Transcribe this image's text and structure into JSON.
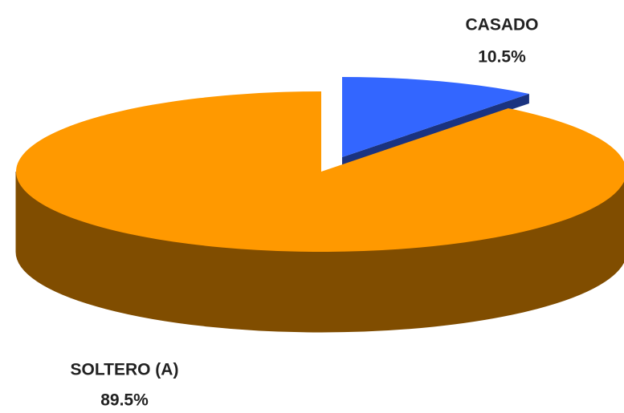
{
  "chart_data": {
    "type": "pie",
    "categories": [
      "CASADO",
      "SOLTERO (A)"
    ],
    "values": [
      10.5,
      89.5
    ],
    "value_labels": [
      "10.5%",
      "89.5%"
    ],
    "colors": [
      "#3366ff",
      "#ff9900"
    ]
  }
}
